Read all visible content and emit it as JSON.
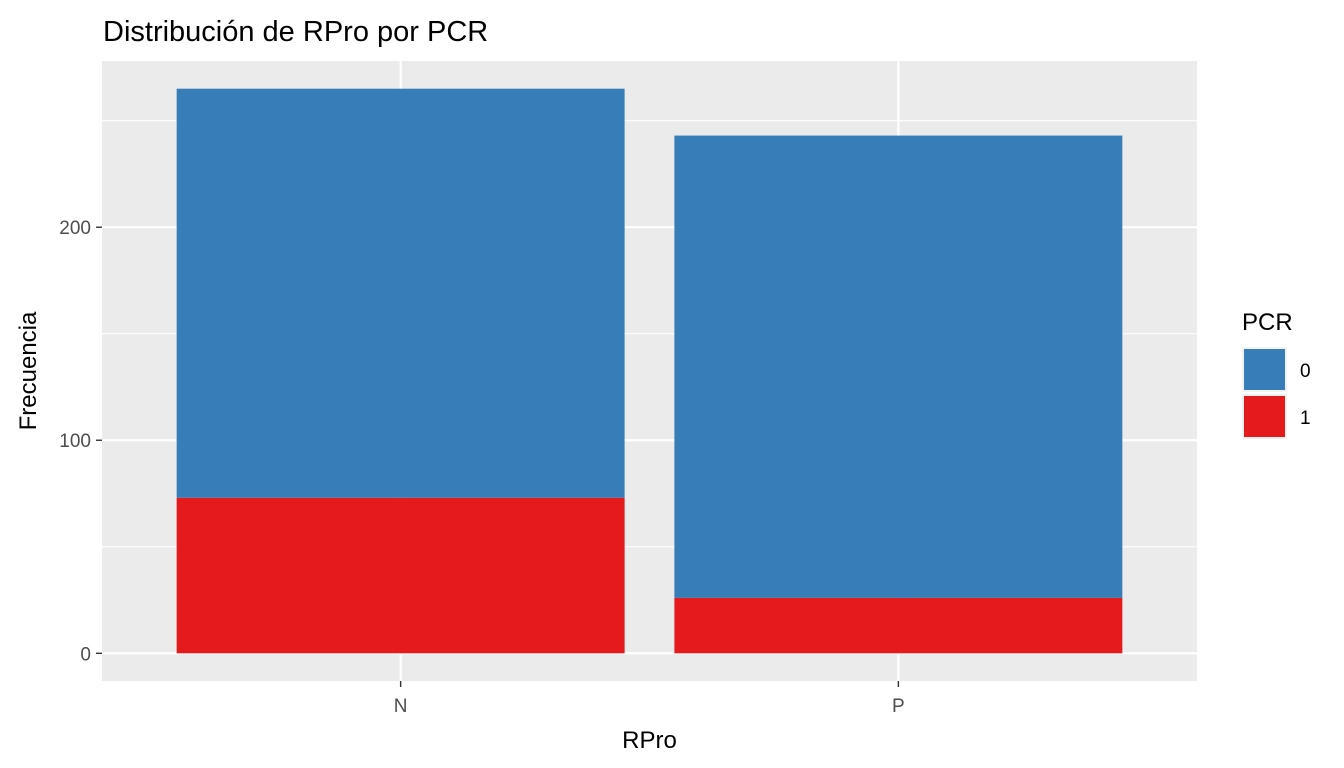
{
  "chart_data": {
    "type": "bar",
    "stacked": true,
    "title": "Distribución de RPro por PCR",
    "xlabel": "RPro",
    "ylabel": "Frecuencia",
    "categories": [
      "N",
      "P"
    ],
    "series": [
      {
        "name": "0",
        "color": "#377EB8",
        "values": [
          192,
          217
        ]
      },
      {
        "name": "1",
        "color": "#E41A1C",
        "values": [
          73,
          26
        ]
      }
    ],
    "ylim": [
      -13,
      278
    ],
    "yticks": [
      0,
      100,
      200
    ],
    "grid": true,
    "legend": {
      "title": "PCR",
      "position": "right",
      "entries": [
        "0",
        "1"
      ]
    },
    "panel_background": "#EBEBEB",
    "gridline_color": "#FFFFFF"
  }
}
